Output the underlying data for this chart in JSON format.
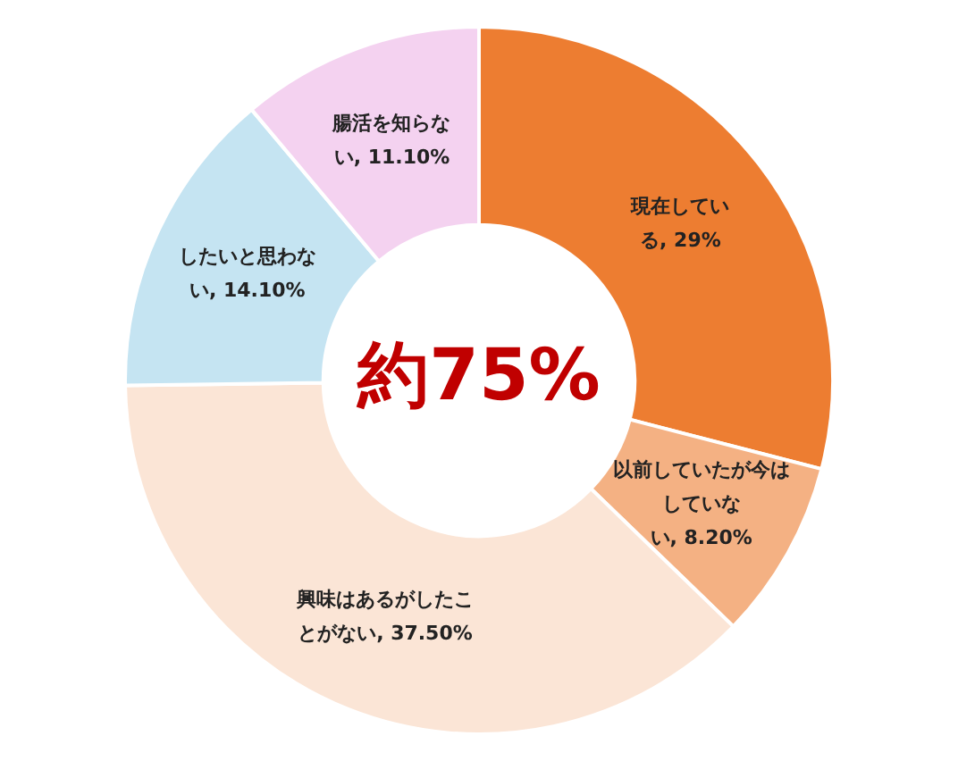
{
  "chart_data": {
    "type": "donut",
    "categories": [
      "現在している",
      "以前していたが今はしていない",
      "興味はあるがしたことがない",
      "したいと思わない",
      "腸活を知らない"
    ],
    "values": [
      29,
      8.2,
      37.5,
      14.1,
      11.1
    ],
    "value_labels": [
      "29%",
      "8.20%",
      "37.50%",
      "14.10%",
      "11.10%"
    ],
    "colors": [
      "#ed7d31",
      "#f4b183",
      "#fbe5d6",
      "#c5e4f2",
      "#f4d2f0"
    ],
    "annotations": [
      "約75%"
    ],
    "legend": false
  }
}
